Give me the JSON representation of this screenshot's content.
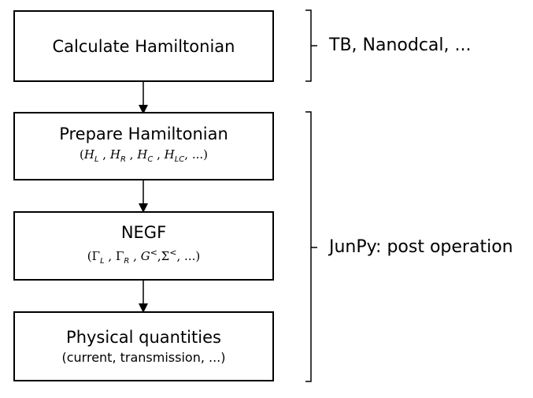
{
  "boxes": {
    "calculate": {
      "title": "Calculate Hamiltonian"
    },
    "prepare": {
      "title": "Prepare Hamiltonian",
      "sub": {
        "open": "(",
        "H": "H",
        "L": "L",
        "R": "R",
        "C": "C",
        "LC": "LC",
        "sep": " ,",
        "tail": ", ...)"
      }
    },
    "negf": {
      "title": "NEGF",
      "sub": {
        "open": "(",
        "Gamma": "Γ",
        "L": "L",
        "R": "R",
        "G": "G",
        "Sigma": "Σ",
        "lt": "<",
        "sep": " ,",
        "comma": ",",
        "tail": ", ...)"
      }
    },
    "physical": {
      "title": "Physical quantities",
      "sub": "(current, transmission, ...)"
    }
  },
  "side_labels": {
    "top": "TB, Nanodcal, ...",
    "bottom": "JunPy: post operation"
  }
}
